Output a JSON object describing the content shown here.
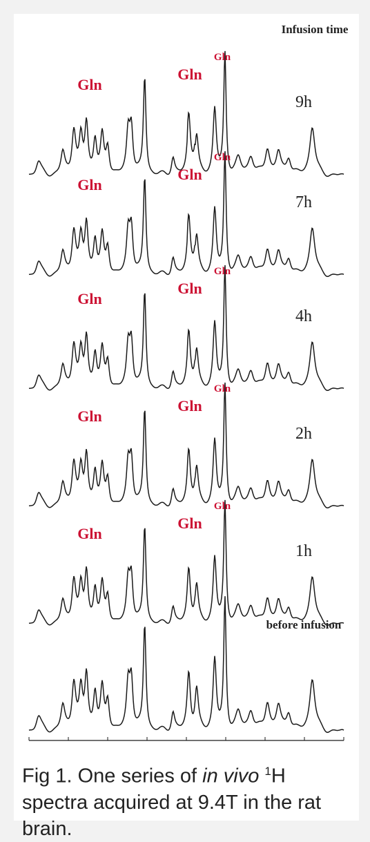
{
  "chart_data": {
    "type": "line",
    "header": "Infusion time",
    "x_ticks": [
      "4.5",
      "4.0",
      "3.5",
      "3.0",
      "2.5",
      "2.0",
      "1.5",
      "1.0",
      "0.5"
    ],
    "xlim": [
      4.5,
      0.5
    ],
    "series": [
      {
        "name": "9h",
        "gln_labels": [
          "Gln",
          "Gln",
          "Gln"
        ]
      },
      {
        "name": "7h",
        "gln_labels": [
          "Gln",
          "Gln",
          "Gln"
        ]
      },
      {
        "name": "4h",
        "gln_labels": [
          "Gln",
          "Gln",
          "Gln"
        ]
      },
      {
        "name": "2h",
        "gln_labels": [
          "Gln",
          "Gln",
          "Gln"
        ]
      },
      {
        "name": "1h",
        "gln_labels": [
          "Gln",
          "Gln",
          "Gln"
        ]
      },
      {
        "name": "before infusion",
        "gln_labels": []
      }
    ],
    "peaks_ppm": [
      {
        "ppm": 4.38,
        "height": 0.22,
        "width": 0.04
      },
      {
        "ppm": 4.07,
        "height": 0.35,
        "width": 0.03
      },
      {
        "ppm": 3.93,
        "height": 0.72,
        "width": 0.03
      },
      {
        "ppm": 3.84,
        "height": 0.55,
        "width": 0.025
      },
      {
        "ppm": 3.77,
        "height": 0.8,
        "width": 0.025
      },
      {
        "ppm": 3.66,
        "height": 0.55,
        "width": 0.025
      },
      {
        "ppm": 3.57,
        "height": 0.58,
        "width": 0.025
      },
      {
        "ppm": 3.5,
        "height": 0.45,
        "width": 0.025
      },
      {
        "ppm": 3.24,
        "height": 0.65,
        "width": 0.025
      },
      {
        "ppm": 3.2,
        "height": 0.75,
        "width": 0.025
      },
      {
        "ppm": 3.03,
        "height": 1.55,
        "width": 0.02
      },
      {
        "ppm": 2.67,
        "height": 0.28,
        "width": 0.025
      },
      {
        "ppm": 2.47,
        "height": 0.85,
        "width": 0.025
      },
      {
        "ppm": 2.37,
        "height": 0.58,
        "width": 0.025
      },
      {
        "ppm": 2.14,
        "height": 1.05,
        "width": 0.025
      },
      {
        "ppm": 2.01,
        "height": 1.9,
        "width": 0.018
      },
      {
        "ppm": 1.84,
        "height": 0.25,
        "width": 0.04
      },
      {
        "ppm": 1.68,
        "height": 0.3,
        "width": 0.04
      },
      {
        "ppm": 1.47,
        "height": 0.42,
        "width": 0.035
      },
      {
        "ppm": 1.33,
        "height": 0.35,
        "width": 0.035
      },
      {
        "ppm": 1.2,
        "height": 0.28,
        "width": 0.035
      },
      {
        "ppm": 0.9,
        "height": 0.78,
        "width": 0.04
      }
    ]
  },
  "caption": {
    "prefix": "Fig 1. One series of ",
    "italic": "in vivo",
    "sup": "1",
    "suffix": "H spectra acquired at 9.4T in the rat brain."
  },
  "colors": {
    "gln": "#cc1133",
    "trace": "#1a1a1a",
    "text": "#222222",
    "figure_bg": "#ffffff",
    "page_bg": "#f2f2f2"
  }
}
